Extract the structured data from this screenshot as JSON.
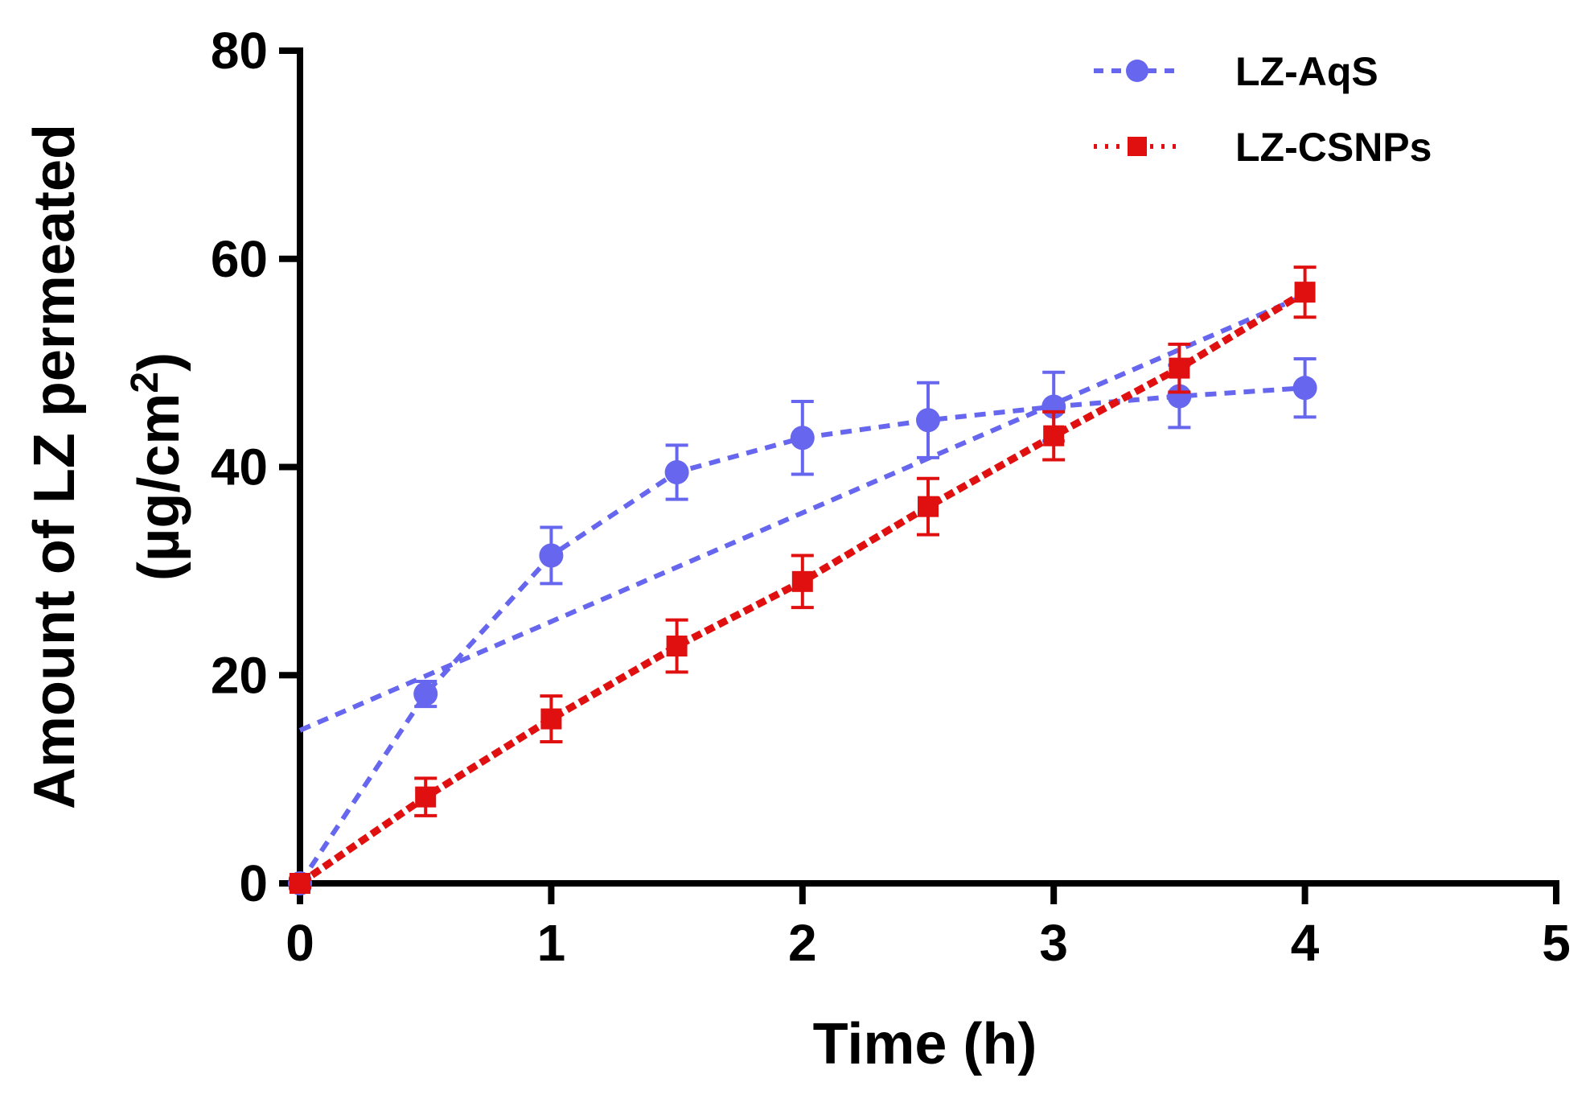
{
  "chart_data": {
    "type": "line",
    "title": "",
    "xlabel": "Time (h)",
    "ylabel_line1": "Amount of LZ permeated",
    "ylabel_line2_prefix": "(µg/cm",
    "ylabel_line2_sup": "2",
    "ylabel_line2_suffix": ")",
    "xlim": [
      0,
      5
    ],
    "ylim": [
      0,
      80
    ],
    "x_ticks": [
      0,
      1,
      2,
      3,
      4,
      5
    ],
    "y_ticks": [
      0,
      20,
      40,
      60,
      80
    ],
    "x_tick_labels": [
      "0",
      "1",
      "2",
      "3",
      "4",
      "5"
    ],
    "y_tick_labels": [
      "0",
      "20",
      "40",
      "60",
      "80"
    ],
    "grid": false,
    "legend_position": "top-right",
    "series": [
      {
        "name": "LZ-AqS",
        "color": "#6666ee",
        "marker": "circle",
        "x": [
          0,
          0.5,
          1,
          1.5,
          2,
          2.5,
          3,
          3.5,
          4
        ],
        "values": [
          0,
          18.2,
          31.5,
          39.5,
          42.8,
          44.5,
          45.8,
          46.8,
          47.6
        ],
        "errors": [
          0.5,
          1.2,
          2.7,
          2.6,
          3.5,
          3.6,
          3.3,
          3.0,
          2.8
        ],
        "trendline": {
          "x": [
            0,
            4
          ],
          "values": [
            14.7,
            56.5
          ]
        }
      },
      {
        "name": "LZ-CSNPs",
        "color": "#e01010",
        "marker": "square",
        "x": [
          0,
          0.5,
          1,
          1.5,
          2,
          2.5,
          3,
          3.5,
          4
        ],
        "values": [
          0,
          8.3,
          15.8,
          22.8,
          29.0,
          36.2,
          43.0,
          49.5,
          56.8
        ],
        "errors": [
          0.4,
          1.8,
          2.2,
          2.5,
          2.5,
          2.7,
          2.3,
          2.3,
          2.4
        ]
      }
    ]
  }
}
